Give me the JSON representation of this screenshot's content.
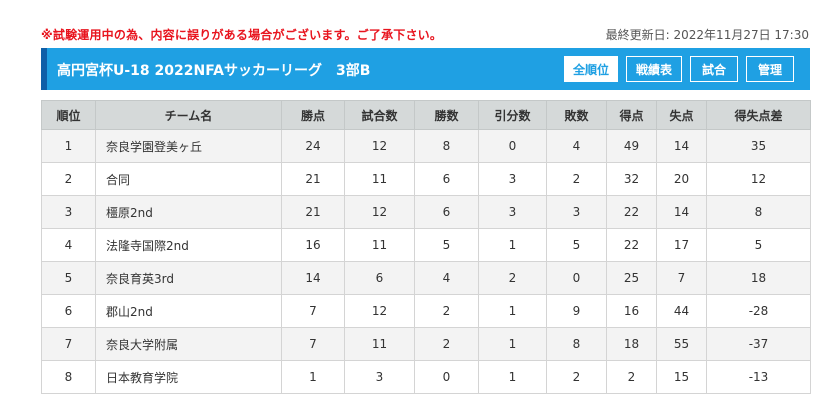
{
  "notice": "※試験運用中の為、内容に誤りがある場合がございます。ご了承下さい。",
  "last_updated": "最終更新日: 2022年11月27日 17:30",
  "header": {
    "title": "高円宮杯U-18 2022NFAサッカーリーグ　3部B",
    "nav": [
      {
        "label": "全順位",
        "active": true
      },
      {
        "label": "戦績表",
        "active": false
      },
      {
        "label": "試合",
        "active": false
      },
      {
        "label": "管理",
        "active": false
      }
    ]
  },
  "table": {
    "columns": [
      "順位",
      "チーム名",
      "勝点",
      "試合数",
      "勝数",
      "引分数",
      "敗数",
      "得点",
      "失点",
      "得失点差"
    ],
    "rows": [
      [
        "1",
        "奈良学園登美ヶ丘",
        "24",
        "12",
        "8",
        "0",
        "4",
        "49",
        "14",
        "35"
      ],
      [
        "2",
        "合同",
        "21",
        "11",
        "6",
        "3",
        "2",
        "32",
        "20",
        "12"
      ],
      [
        "3",
        "橿原2nd",
        "21",
        "12",
        "6",
        "3",
        "3",
        "22",
        "14",
        "8"
      ],
      [
        "4",
        "法隆寺国際2nd",
        "16",
        "11",
        "5",
        "1",
        "5",
        "22",
        "17",
        "5"
      ],
      [
        "5",
        "奈良育英3rd",
        "14",
        "6",
        "4",
        "2",
        "0",
        "25",
        "7",
        "18"
      ],
      [
        "6",
        "郡山2nd",
        "7",
        "12",
        "2",
        "1",
        "9",
        "16",
        "44",
        "-28"
      ],
      [
        "7",
        "奈良大学附属",
        "7",
        "11",
        "2",
        "1",
        "8",
        "18",
        "55",
        "-37"
      ],
      [
        "8",
        "日本教育学院",
        "1",
        "3",
        "0",
        "1",
        "2",
        "2",
        "15",
        "-13"
      ]
    ]
  }
}
